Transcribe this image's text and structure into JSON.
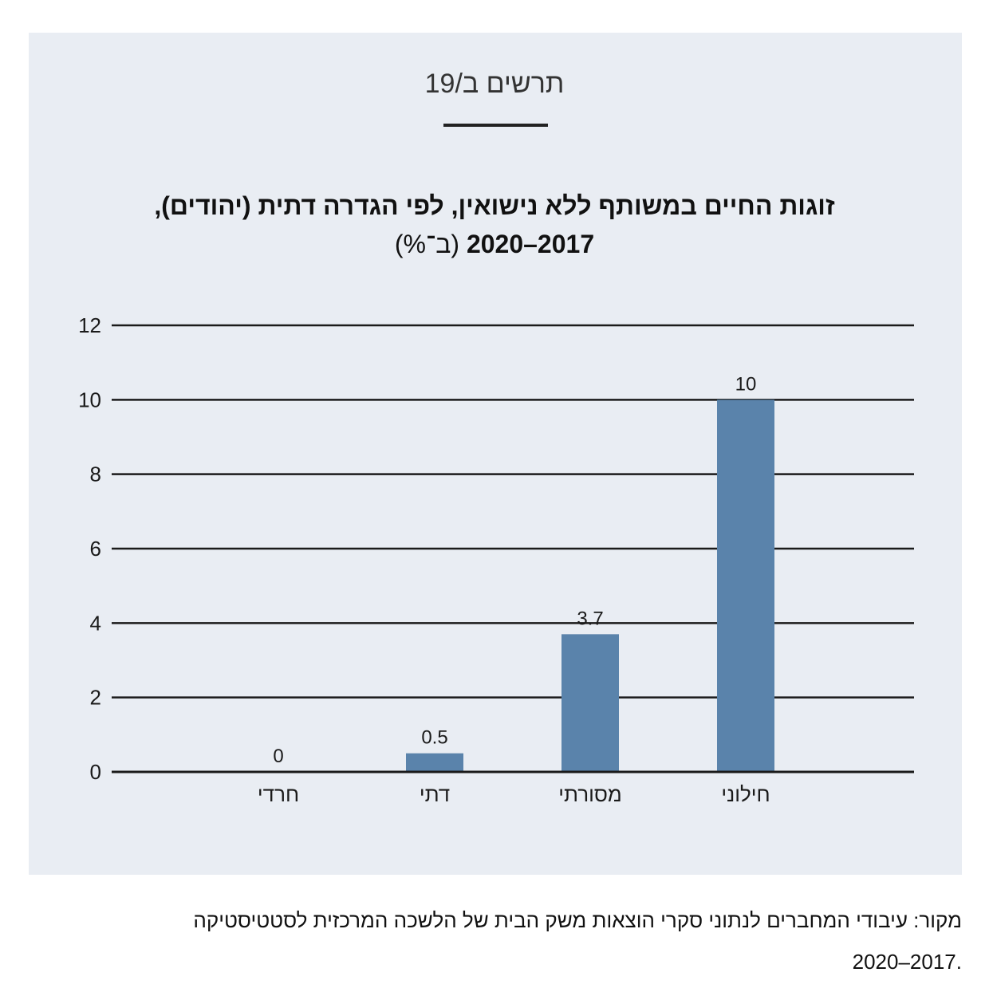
{
  "figure_label": "תרשים ב/19",
  "title_line1": "זוגות החיים במשותף ללא נישואין, לפי הגדרה דתית (יהודים),",
  "title_years": "2017–2020",
  "title_unit": "(ב־%)",
  "source_line1": "מקור: עיבודי המחברים לנתוני סקרי הוצאות משק הבית של הלשכה המרכזית לסטטיסטיקה",
  "source_line2": ".2017–2020",
  "colors": {
    "panel": "#e9edf3",
    "bar": "#5a83ab",
    "grid": "#1a1a1a"
  },
  "chart_data": {
    "type": "bar",
    "categories": [
      "חרדי",
      "דתי",
      "מסורתי",
      "חילוני"
    ],
    "values": [
      0,
      0.5,
      3.7,
      10
    ],
    "data_labels": [
      "0",
      "0.5",
      "3.7",
      "10"
    ],
    "ylim": [
      0,
      12
    ],
    "yticks": [
      0,
      2,
      4,
      6,
      8,
      10,
      12
    ],
    "grid": true
  }
}
